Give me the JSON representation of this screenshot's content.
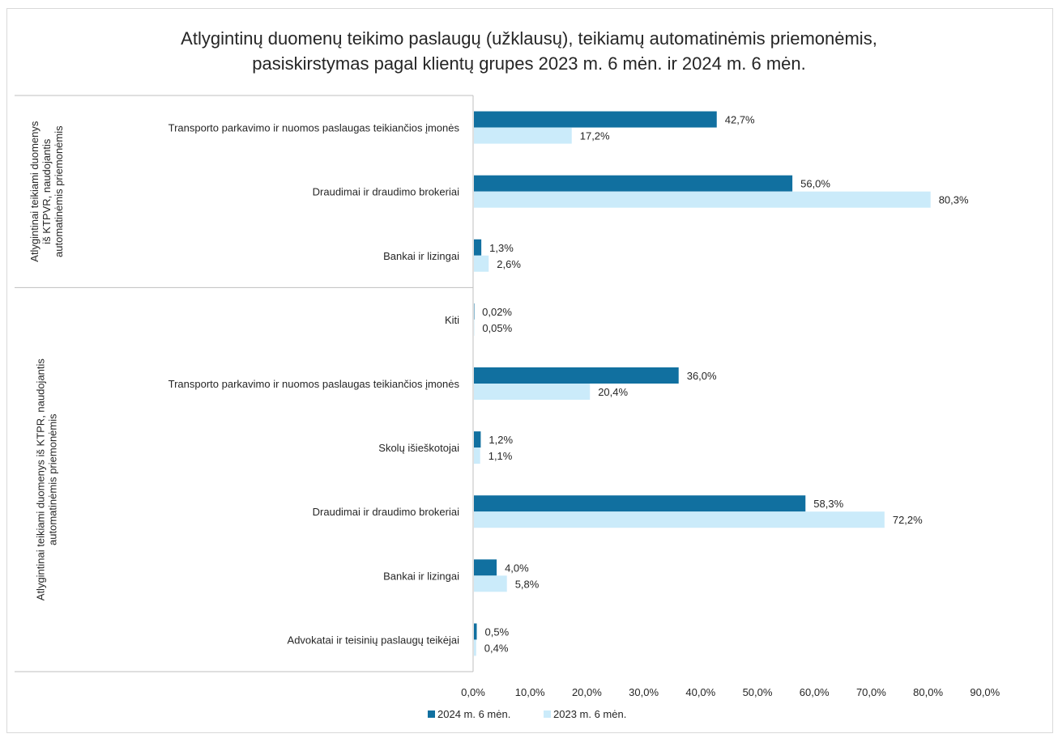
{
  "title_line1": "Atlygintinų duomenų teikimo paslaugų (užklausų), teikiamų automatinėmis priemonėmis,",
  "title_line2": "pasiskirstymas pagal klientų grupes 2023 m. 6 mėn. ir 2024 m. 6 mėn.",
  "colors": {
    "s2024": "#1170a0",
    "s2023": "#cbebfa"
  },
  "chart_data": {
    "type": "bar",
    "orientation": "horizontal",
    "title": "Atlygintinų duomenų teikimo paslaugų (užklausų), teikiamų automatinėmis priemonėmis, pasiskirstymas pagal klientų grupes 2023 m. 6 mėn. ir 2024 m. 6 mėn.",
    "xlim": [
      0,
      90
    ],
    "x_ticks": [
      "0,0%",
      "10,0%",
      "20,0%",
      "30,0%",
      "40,0%",
      "50,0%",
      "60,0%",
      "70,0%",
      "80,0%",
      "90,0%"
    ],
    "legend_position": "bottom",
    "series": [
      {
        "name": "2024 m. 6 mėn.",
        "key": "s2024"
      },
      {
        "name": "2023 m. 6 mėn.",
        "key": "s2023"
      }
    ],
    "groups": [
      {
        "label_lines": [
          "Atlygintinai teikiami duomenys",
          "iš KTPVR, naudojantis",
          "automatinėmis priemonėmis"
        ],
        "categories": [
          {
            "name": "Transporto parkavimo ir nuomos paslaugas teikiančios įmonės",
            "v2024": 42.7,
            "v2023": 17.2,
            "l2024": "42,7%",
            "l2023": "17,2%"
          },
          {
            "name": "Draudimai ir draudimo brokeriai",
            "v2024": 56.0,
            "v2023": 80.3,
            "l2024": "56,0%",
            "l2023": "80,3%"
          },
          {
            "name": "Bankai ir lizingai",
            "v2024": 1.3,
            "v2023": 2.6,
            "l2024": "1,3%",
            "l2023": "2,6%"
          }
        ]
      },
      {
        "label_lines": [
          "Atlygintinai teikiami duomenys iš KTPR, naudojantis",
          "automatinėmis priemonėmis"
        ],
        "categories": [
          {
            "name": "Kiti",
            "v2024": 0.02,
            "v2023": 0.05,
            "l2024": "0,02%",
            "l2023": "0,05%"
          },
          {
            "name": "Transporto parkavimo ir nuomos paslaugas teikiančios įmonės",
            "v2024": 36.0,
            "v2023": 20.4,
            "l2024": "36,0%",
            "l2023": "20,4%"
          },
          {
            "name": "Skolų išieškotojai",
            "v2024": 1.2,
            "v2023": 1.1,
            "l2024": "1,2%",
            "l2023": "1,1%"
          },
          {
            "name": "Draudimai ir draudimo brokeriai",
            "v2024": 58.3,
            "v2023": 72.2,
            "l2024": "58,3%",
            "l2023": "72,2%"
          },
          {
            "name": "Bankai ir lizingai",
            "v2024": 4.0,
            "v2023": 5.8,
            "l2024": "4,0%",
            "l2023": "5,8%"
          },
          {
            "name": "Advokatai ir teisinių paslaugų teikėjai",
            "v2024": 0.5,
            "v2023": 0.4,
            "l2024": "0,5%",
            "l2023": "0,4%"
          }
        ]
      }
    ]
  }
}
